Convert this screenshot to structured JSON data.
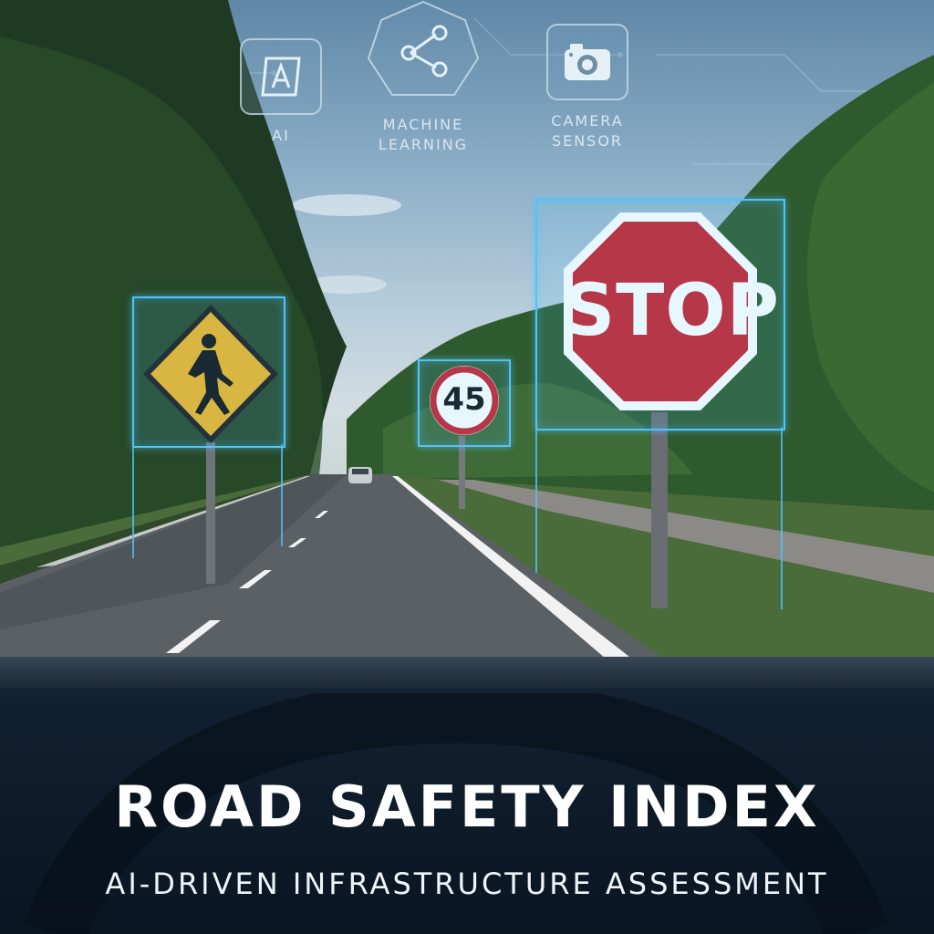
{
  "header": {
    "topics": [
      {
        "label": "AI",
        "icon": "ai-chip-icon"
      },
      {
        "label": "MACHINE\nLEARNING",
        "icon": "network-nodes-icon"
      },
      {
        "label": "CAMERA\nSENSOR",
        "icon": "camera-icon"
      }
    ]
  },
  "detections": [
    {
      "label": "pedestrian-crossing",
      "icon": "pedestrian-crossing-sign-icon"
    },
    {
      "label": "speed-limit",
      "value": "45"
    },
    {
      "label": "stop",
      "text": "STOP"
    }
  ],
  "footer": {
    "title": "ROAD SAFETY INDEX",
    "subtitle": "AI-DRIVEN INFRASTRUCTURE ASSESSMENT"
  },
  "colors": {
    "accent": "#4fc3ff",
    "stop_red": "#c8202a",
    "warning_yellow": "#f0b323"
  }
}
